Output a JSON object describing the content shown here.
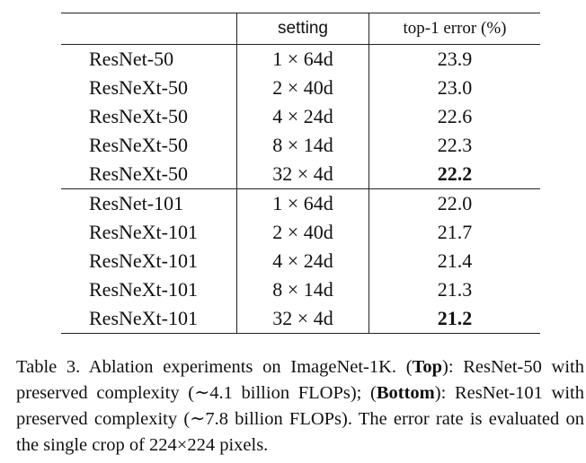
{
  "table": {
    "header": [
      "",
      "setting",
      "top-1 error (%)"
    ],
    "groups": [
      [
        [
          "ResNet-50",
          "1 × 64d",
          "23.9"
        ],
        [
          "ResNeXt-50",
          "2 × 40d",
          "23.0"
        ],
        [
          "ResNeXt-50",
          "4 × 24d",
          "22.6"
        ],
        [
          "ResNeXt-50",
          "8 × 14d",
          "22.3"
        ],
        [
          "ResNeXt-50",
          "32 × 4d",
          "22.2"
        ]
      ],
      [
        [
          "ResNet-101",
          "1 × 64d",
          "22.0"
        ],
        [
          "ResNeXt-101",
          "2 × 40d",
          "21.7"
        ],
        [
          "ResNeXt-101",
          "4 × 24d",
          "21.4"
        ],
        [
          "ResNeXt-101",
          "8 × 14d",
          "21.3"
        ],
        [
          "ResNeXt-101",
          "32 × 4d",
          "21.2"
        ]
      ]
    ]
  },
  "caption": [
    "Table 3. Ablation experiments on ImageNet-1K. (",
    "Top",
    "): ResNet-50 with preserved complexity (∼4.1 billion FLOPs); (",
    "Bottom",
    "): ResNet-101 with preserved complexity (∼7.8 billion FLOPs). The error rate is evaluated on the single crop of 224×224 pixels."
  ]
}
